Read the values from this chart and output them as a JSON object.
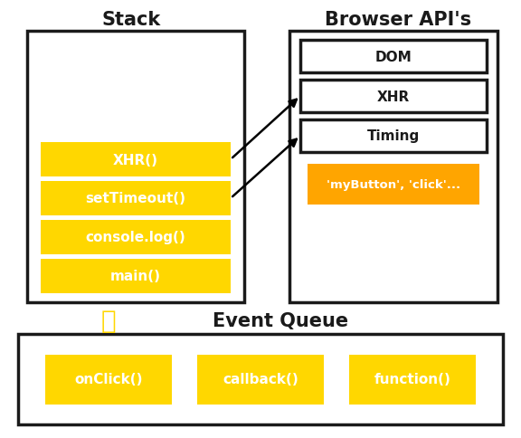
{
  "title_stack": "Stack",
  "title_browser": "Browser API's",
  "title_event_queue": "Event Queue",
  "stack_items": [
    "XHR()",
    "setTimeout()",
    "console.log()",
    "main()"
  ],
  "browser_items": [
    "DOM",
    "XHR",
    "Timing"
  ],
  "browser_orange_label": "'myButton', 'click'...",
  "event_queue_items": [
    "onClick()",
    "callback()",
    "function()"
  ],
  "yellow_color": "#FFD700",
  "orange_color": "#FFA500",
  "white_color": "#FFFFFF",
  "black_color": "#000000",
  "edge_color": "#1a1a1a",
  "text_dark": "#1a1a1a",
  "text_white": "#FFFFFF",
  "bg_color": "#FFFFFF",
  "fig_w": 5.76,
  "fig_h": 4.85,
  "dpi": 100
}
